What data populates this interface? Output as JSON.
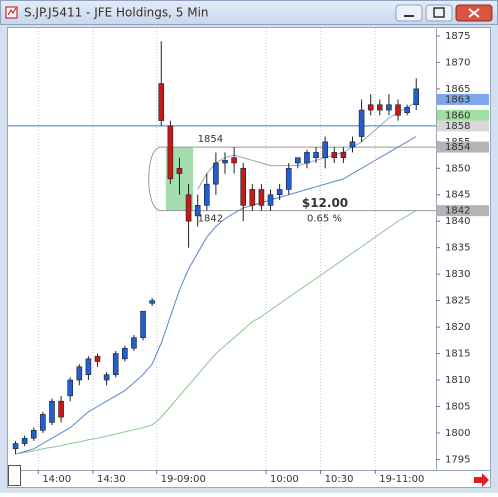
{
  "window_title": "S.JP.J5411 - JFE Holdings, 5 Min",
  "chart_data": {
    "type": "candlestick",
    "categories": [
      null,
      null,
      null,
      "14:00",
      null,
      null,
      null,
      null,
      null,
      "14:30",
      null,
      null,
      null,
      null,
      null,
      null,
      "19-09:00",
      null,
      null,
      null,
      null,
      null,
      null,
      null,
      null,
      null,
      null,
      null,
      "10:00",
      null,
      null,
      null,
      null,
      null,
      "10:30",
      null,
      null,
      null,
      null,
      null,
      "19-11:00",
      null,
      null,
      null,
      null
    ],
    "candles": {
      "open": [
        1797,
        1798,
        1799,
        1800.5,
        1802,
        1806,
        1807,
        1810,
        1811,
        1814.5,
        1810,
        1811,
        1814,
        1816,
        1818,
        1824.5,
        1866,
        1858,
        1850,
        1845,
        1841,
        1843,
        1847,
        1851,
        1852,
        1850,
        1846,
        1846,
        1843,
        1845,
        1846,
        1851,
        1851,
        1852,
        1852,
        1853,
        1853,
        1854,
        1856,
        1862,
        1862,
        1861,
        1862,
        1860.5,
        1862
      ],
      "high": [
        1798.5,
        1799.5,
        1801,
        1804,
        1806.5,
        1807,
        1810.5,
        1813,
        1814.5,
        1815,
        1811.5,
        1815.5,
        1816.5,
        1818.5,
        1823,
        1825.5,
        1874,
        1859,
        1852,
        1847,
        1845,
        1849,
        1853,
        1853,
        1854,
        1851,
        1847,
        1847,
        1846,
        1847,
        1851,
        1852,
        1853.5,
        1854,
        1856,
        1854,
        1854,
        1856,
        1863,
        1864,
        1863,
        1864,
        1863,
        1862,
        1867
      ],
      "low": [
        1796,
        1797.5,
        1798.5,
        1800,
        1801.5,
        1802,
        1806,
        1809,
        1810,
        1812.5,
        1809,
        1810.5,
        1813.5,
        1815.5,
        1817.5,
        1824,
        1858,
        1847,
        1845,
        1835,
        1839,
        1842,
        1845,
        1849,
        1849,
        1840,
        1842,
        1842,
        1842,
        1844,
        1845,
        1850,
        1850,
        1851,
        1850,
        1851,
        1851,
        1853,
        1855,
        1860,
        1860,
        1860,
        1859,
        1860,
        1861
      ],
      "close": [
        1798,
        1799,
        1800.5,
        1803.5,
        1806,
        1803,
        1810,
        1812.5,
        1814,
        1813.5,
        1811,
        1815,
        1816,
        1818,
        1823,
        1825,
        1859,
        1848,
        1849,
        1840,
        1843,
        1847,
        1851,
        1851.5,
        1851,
        1843,
        1843,
        1843,
        1845,
        1846,
        1850,
        1852,
        1853,
        1853,
        1855,
        1852,
        1852,
        1855,
        1861,
        1861,
        1861,
        1862,
        1860,
        1861.5,
        1865
      ]
    },
    "up_color": "#1f5fd0",
    "down_color": "#c41a1a",
    "lines": [
      {
        "color": "#5a86c8",
        "values": [
          1796,
          1796.5,
          1797,
          1798,
          1799,
          1800,
          1801,
          1802.5,
          1804,
          1805,
          1806,
          1807,
          1808,
          1809.5,
          1811,
          1813,
          1817,
          1822,
          1827,
          1831,
          1834,
          1837,
          1839,
          1840.5,
          1841.5,
          1842.5,
          1843,
          1843.5,
          1844,
          1844.5,
          1845,
          1845.5,
          1846,
          1846.5,
          1847,
          1847.5,
          1848,
          1849,
          1850,
          1851,
          1852,
          1853,
          1854,
          1855,
          1856
        ]
      },
      {
        "color": "#8ea6c4",
        "values": [
          null,
          null,
          null,
          null,
          null,
          null,
          null,
          null,
          null,
          null,
          null,
          null,
          null,
          null,
          null,
          null,
          null,
          null,
          null,
          null,
          1846,
          1849,
          1851,
          1852,
          1852.5,
          1852,
          1851.5,
          1851,
          1850.5,
          1850.5,
          1850.5,
          1850.5,
          1851,
          1851.5,
          1852,
          1852.5,
          1853,
          1854,
          1855,
          1856.5,
          1858,
          1859.5,
          1860.5,
          1861.5,
          1862.5
        ]
      },
      {
        "color": "#8fc48f",
        "values": [
          1796,
          1796.3,
          1796.6,
          1797,
          1797.3,
          1797.6,
          1798,
          1798.3,
          1798.7,
          1799,
          1799.4,
          1799.8,
          1800.2,
          1800.6,
          1801,
          1801.5,
          1803,
          1805,
          1807,
          1809,
          1811,
          1813,
          1815,
          1816.5,
          1818,
          1819.5,
          1821,
          1822,
          1823.2,
          1824.4,
          1825.6,
          1826.8,
          1828,
          1829.2,
          1830.4,
          1831.6,
          1832.8,
          1834,
          1835.2,
          1836.4,
          1837.6,
          1838.8,
          1840,
          1841,
          1842
        ]
      }
    ],
    "price_line": {
      "value": 1858,
      "color": "#3a78d0"
    },
    "price_tags": [
      {
        "value": 1863,
        "color": "#7fa6ea"
      },
      {
        "value": 1860,
        "color": "#9fe09f"
      },
      {
        "value": 1858,
        "color": "#d8d8d8"
      },
      {
        "value": 1854,
        "color": "#b4b4b4"
      },
      {
        "value": 1842,
        "color": "#b4b4b4"
      }
    ],
    "range": {
      "high": 1854,
      "low": 1842,
      "change": "$12.00",
      "percent": "0.65 %",
      "shade": "#8fd49a"
    },
    "ylim": [
      1793,
      1876.5
    ],
    "yticks": [
      1795,
      1800,
      1805,
      1810,
      1815,
      1820,
      1825,
      1830,
      1835,
      1840,
      1845,
      1850,
      1855,
      1860,
      1865,
      1870,
      1875
    ]
  }
}
